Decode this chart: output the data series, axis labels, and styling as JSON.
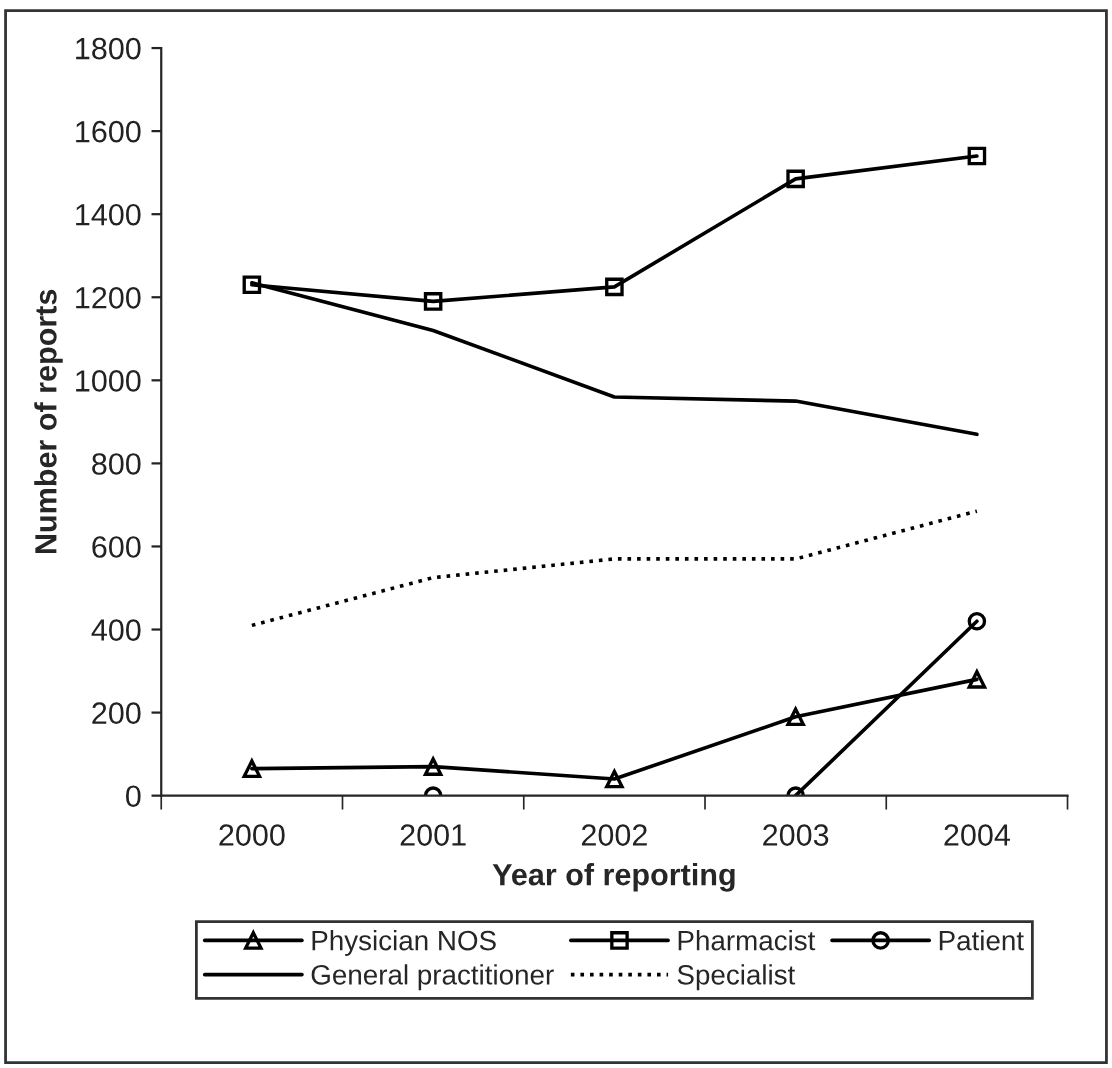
{
  "chart_data": {
    "type": "line",
    "xlabel": "Year of reporting",
    "ylabel": "Number of reports",
    "categories": [
      "2000",
      "2001",
      "2002",
      "2003",
      "2004"
    ],
    "series": [
      {
        "name": "Physician NOS",
        "color": "#000000",
        "marker": "triangle",
        "line_style": "solid",
        "values": [
          65,
          70,
          40,
          190,
          280
        ]
      },
      {
        "name": "Pharmacist",
        "color": "#000000",
        "marker": "square",
        "line_style": "solid",
        "values": [
          1230,
          1190,
          1225,
          1485,
          1540
        ]
      },
      {
        "name": "Patient",
        "color": "#000000",
        "marker": "circle",
        "line_style": "solid",
        "values": [
          null,
          0,
          null,
          0,
          420
        ]
      },
      {
        "name": "General practitioner",
        "color": "#000000",
        "marker": "none",
        "line_style": "solid",
        "values": [
          1235,
          1120,
          960,
          950,
          870
        ]
      },
      {
        "name": "Specialist",
        "color": "#000000",
        "marker": "none",
        "line_style": "dotted",
        "values": [
          410,
          525,
          570,
          570,
          685
        ]
      }
    ],
    "ylim": [
      0,
      1800
    ],
    "yticks": [
      0,
      200,
      400,
      600,
      800,
      1000,
      1200,
      1400,
      1600,
      1800
    ],
    "grid": false,
    "legend": "bottom"
  }
}
